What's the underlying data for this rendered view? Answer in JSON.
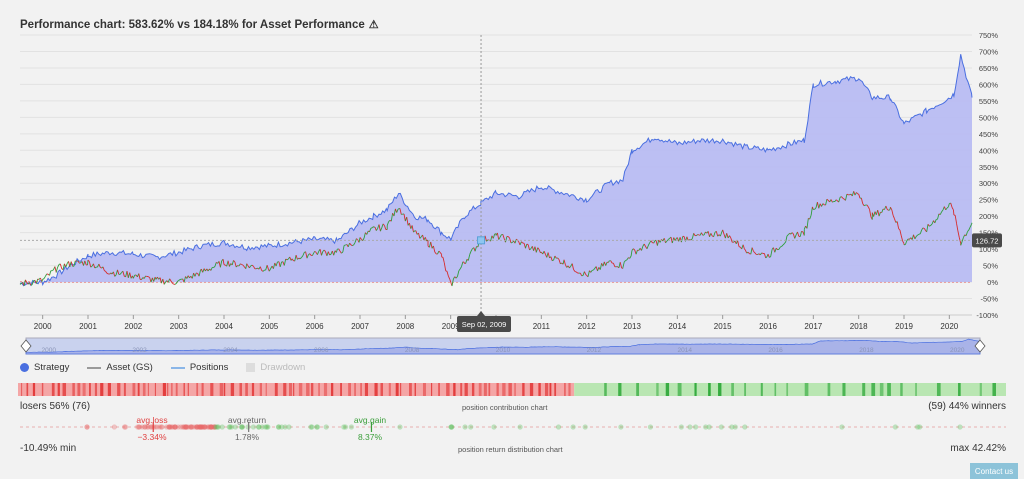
{
  "header": {
    "title": "Performance chart: 583.62% vs 184.18% for Asset Performance",
    "warning_icon": "warning-triangle-icon"
  },
  "legend": {
    "strategy": "Strategy",
    "asset": "Asset (GS)",
    "positions": "Positions",
    "drawdown": "Drawdown"
  },
  "tooltip": {
    "date": "Sep 02, 2009",
    "asset_value": "126.72"
  },
  "contribution": {
    "losers_label": "losers 56% (76)",
    "winners_label": "(59) 44% winners",
    "center_label": "position contribution chart",
    "losers_count": 76,
    "winners_count": 59
  },
  "distribution": {
    "min_label": "-10.49% min",
    "max_label": "max 42.42%",
    "center_label": "position return distribution chart",
    "avg_loss_label": "avg.loss",
    "avg_loss_value": "−3.34%",
    "avg_return_label": "avg.return",
    "avg_return_value": "1.78%",
    "avg_gain_label": "avg.gain",
    "avg_gain_value": "8.37%",
    "min": -10.49,
    "max": 42.42,
    "avg_loss": -3.34,
    "avg_return": 1.78,
    "avg_gain": 8.37
  },
  "footer": {
    "contact": "Contact us"
  },
  "colors": {
    "strategy_fill": "#b8bcf2",
    "strategy_line": "#4a6fe0",
    "asset_up": "#2e9e3a",
    "asset_down": "#d62b2b",
    "losers": "#f4a6a6",
    "winners": "#b9e6b2"
  },
  "chart_data": {
    "type": "area",
    "title": "Performance chart: 583.62% vs 184.18% for Asset Performance",
    "x_ticks": [
      "2000",
      "2001",
      "2002",
      "2003",
      "2004",
      "2005",
      "2006",
      "2007",
      "2008",
      "2009",
      "2010",
      "2011",
      "2012",
      "2013",
      "2014",
      "2015",
      "2016",
      "2017",
      "2018",
      "2019",
      "2020"
    ],
    "y_ticks": [
      "-100%",
      "-50%",
      "0%",
      "50%",
      "100%",
      "150%",
      "200%",
      "250%",
      "300%",
      "350%",
      "400%",
      "450%",
      "500%",
      "550%",
      "600%",
      "650%",
      "700%",
      "750%"
    ],
    "ylim": [
      -100,
      750
    ],
    "xlim": [
      1999.5,
      2020.5
    ],
    "series": [
      {
        "name": "Strategy",
        "x": [
          1999.5,
          2000.0,
          2000.3,
          2000.6,
          2001.0,
          2001.5,
          2002.0,
          2002.5,
          2003.0,
          2003.5,
          2004.0,
          2004.5,
          2005.0,
          2005.5,
          2006.0,
          2006.5,
          2007.0,
          2007.3,
          2007.6,
          2007.85,
          2008.2,
          2008.5,
          2008.8,
          2009.0,
          2009.3,
          2009.67,
          2010.0,
          2010.5,
          2011.0,
          2011.5,
          2012.0,
          2012.5,
          2012.8,
          2013.0,
          2013.5,
          2014.0,
          2014.5,
          2015.0,
          2015.5,
          2016.0,
          2016.5,
          2016.8,
          2017.0,
          2017.5,
          2018.0,
          2018.3,
          2018.7,
          2019.0,
          2019.5,
          2020.0,
          2020.1,
          2020.25,
          2020.5
        ],
        "y": [
          -5,
          0,
          20,
          50,
          80,
          90,
          85,
          75,
          90,
          110,
          120,
          105,
          110,
          120,
          130,
          125,
          180,
          200,
          220,
          270,
          200,
          190,
          150,
          130,
          200,
          240,
          270,
          260,
          290,
          270,
          250,
          300,
          310,
          400,
          440,
          420,
          430,
          430,
          410,
          400,
          420,
          430,
          600,
          610,
          620,
          560,
          560,
          480,
          520,
          560,
          570,
          690,
          560
        ]
      },
      {
        "name": "Asset (GS)",
        "x": [
          1999.5,
          2000.0,
          2000.3,
          2000.6,
          2001.0,
          2001.5,
          2002.0,
          2002.5,
          2003.0,
          2003.5,
          2004.0,
          2004.5,
          2005.0,
          2005.5,
          2006.0,
          2006.5,
          2007.0,
          2007.3,
          2007.6,
          2007.85,
          2008.2,
          2008.5,
          2008.8,
          2009.0,
          2009.3,
          2009.67,
          2010.0,
          2010.5,
          2011.0,
          2011.5,
          2012.0,
          2012.5,
          2012.8,
          2013.0,
          2013.5,
          2014.0,
          2014.5,
          2015.0,
          2015.5,
          2016.0,
          2016.5,
          2016.8,
          2017.0,
          2017.5,
          2018.0,
          2018.3,
          2018.7,
          2019.0,
          2019.5,
          2020.0,
          2020.1,
          2020.25,
          2020.5
        ],
        "y": [
          -5,
          5,
          40,
          55,
          60,
          30,
          20,
          5,
          0,
          30,
          60,
          50,
          40,
          70,
          90,
          90,
          130,
          160,
          170,
          230,
          150,
          120,
          80,
          -10,
          60,
          126.72,
          140,
          120,
          90,
          60,
          20,
          60,
          50,
          90,
          120,
          130,
          140,
          150,
          100,
          80,
          140,
          150,
          230,
          250,
          270,
          200,
          230,
          120,
          160,
          240,
          210,
          120,
          180
        ]
      }
    ],
    "grid": true,
    "legend_placement": "bottom-left"
  }
}
